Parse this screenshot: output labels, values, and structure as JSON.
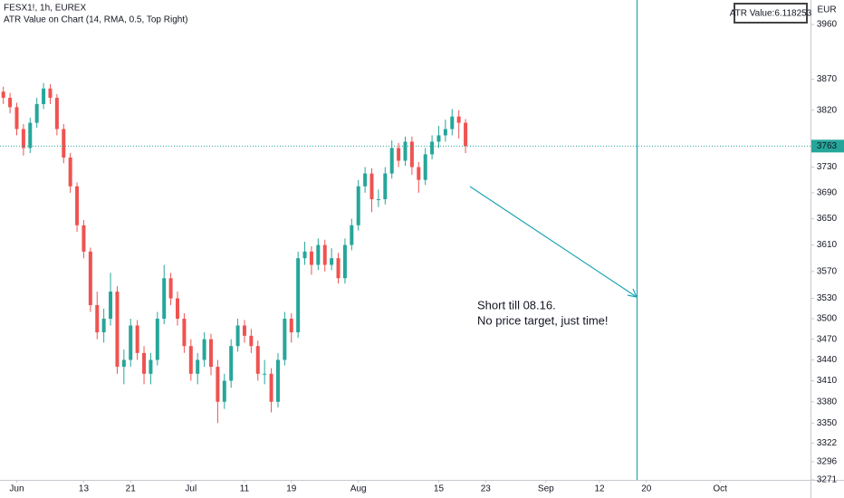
{
  "chart_data": {
    "type": "candlestick",
    "title": "FESX1!, 1h, EUREX",
    "subtitle": "ATR Value on Chart (14, RMA, 0.5, Top Right)",
    "info_box": "ATR Value:6.118253",
    "y_unit": "EUR",
    "annotation": [
      "Short till 08.16.",
      "No price target, just time!"
    ],
    "annotation_color": "#f23645",
    "last_price": 3763,
    "last_price_color": "#26a69a",
    "up_color": "#26a69a",
    "down_color": "#ef5350",
    "log_scale": true,
    "ylim": [
      3271,
      4001
    ],
    "yticks": [
      3960,
      3870,
      3820,
      3730,
      3690,
      3650,
      3610,
      3570,
      3530,
      3500,
      3470,
      3440,
      3410,
      3380,
      3350,
      3322,
      3296,
      3271
    ],
    "categories": [
      null,
      null,
      "Jun",
      null,
      null,
      null,
      null,
      null,
      null,
      null,
      null,
      null,
      "13",
      null,
      null,
      null,
      null,
      null,
      null,
      "21",
      null,
      null,
      null,
      null,
      null,
      null,
      null,
      null,
      "Jul",
      null,
      null,
      null,
      null,
      null,
      null,
      null,
      "11",
      null,
      null,
      null,
      null,
      null,
      null,
      "19",
      null,
      null,
      null,
      null,
      null,
      null,
      null,
      null,
      null,
      "Aug",
      null,
      null,
      null,
      null,
      null,
      null,
      null,
      null,
      null,
      null,
      null,
      "15",
      null,
      null,
      null,
      null,
      null,
      null,
      "23",
      null,
      null,
      null,
      null,
      null,
      null,
      null,
      null,
      "Sep",
      null,
      null,
      null,
      null,
      null,
      null,
      null,
      "12",
      null,
      null,
      null,
      null,
      null,
      null,
      "20",
      null,
      null,
      null,
      null,
      null,
      null,
      null,
      null,
      null,
      null,
      "Oct",
      null,
      null,
      null,
      null,
      null,
      null,
      null,
      null,
      null,
      null,
      null,
      null,
      null
    ],
    "open": [
      3850,
      3840,
      3825,
      3790,
      3760,
      3800,
      3830,
      3855,
      3840,
      3790,
      3745,
      3700,
      3640,
      3600,
      3520,
      3480,
      3500,
      3540,
      3430,
      3440,
      3490,
      3450,
      3420,
      3440,
      3500,
      3560,
      3530,
      3500,
      3460,
      3420,
      3440,
      3470,
      3430,
      3380,
      3410,
      3460,
      3490,
      3475,
      3460,
      3420,
      3420,
      3380,
      3440,
      3500,
      3480,
      3590,
      3600,
      3580,
      3610,
      3580,
      3590,
      3560,
      3610,
      3640,
      3700,
      3720,
      3680,
      3680,
      3720,
      3760,
      3740,
      3770,
      3730,
      3710,
      3750,
      3770,
      3780,
      3790,
      3810,
      3800,
      null,
      null,
      null,
      null,
      null,
      null,
      null,
      null,
      null,
      null,
      null,
      null,
      null,
      null,
      null,
      null,
      null,
      null,
      null,
      null,
      null,
      null,
      null,
      null,
      null,
      null,
      null,
      null,
      null,
      null,
      null,
      null,
      null,
      null,
      null,
      null,
      null,
      null,
      null,
      null,
      null,
      null,
      null,
      null,
      null,
      null,
      null,
      null,
      null,
      null,
      null
    ],
    "high": [
      3858,
      3848,
      3832,
      3798,
      3808,
      3840,
      3864,
      3862,
      3846,
      3798,
      3752,
      3706,
      3648,
      3606,
      3540,
      3515,
      3568,
      3548,
      3455,
      3500,
      3498,
      3460,
      3450,
      3510,
      3580,
      3568,
      3540,
      3508,
      3470,
      3450,
      3480,
      3478,
      3440,
      3420,
      3470,
      3500,
      3498,
      3485,
      3468,
      3440,
      3428,
      3450,
      3510,
      3508,
      3600,
      3615,
      3608,
      3620,
      3618,
      3605,
      3598,
      3620,
      3650,
      3710,
      3730,
      3728,
      3695,
      3730,
      3772,
      3768,
      3778,
      3778,
      3738,
      3760,
      3780,
      3795,
      3805,
      3822,
      3820,
      3806,
      null,
      null,
      null,
      null,
      null,
      null,
      null,
      null,
      null,
      null,
      null,
      null,
      null,
      null,
      null,
      null,
      null,
      null,
      null,
      null,
      null,
      null,
      null,
      null,
      null,
      null,
      null,
      null,
      null,
      null,
      null,
      null,
      null,
      null,
      null,
      null,
      null,
      null,
      null,
      null,
      null,
      null,
      null,
      null,
      null,
      null,
      null,
      null,
      null,
      null,
      null
    ],
    "low": [
      3830,
      3815,
      3780,
      3748,
      3752,
      3792,
      3822,
      3830,
      3780,
      3736,
      3690,
      3630,
      3590,
      3510,
      3470,
      3465,
      3490,
      3420,
      3405,
      3430,
      3440,
      3405,
      3405,
      3432,
      3492,
      3520,
      3490,
      3450,
      3410,
      3405,
      3430,
      3418,
      3350,
      3370,
      3400,
      3452,
      3465,
      3450,
      3410,
      3405,
      3365,
      3372,
      3432,
      3465,
      3472,
      3580,
      3565,
      3572,
      3570,
      3572,
      3552,
      3552,
      3602,
      3632,
      3690,
      3660,
      3668,
      3672,
      3712,
      3730,
      3732,
      3718,
      3690,
      3702,
      3742,
      3760,
      3770,
      3780,
      3775,
      3752,
      null,
      null,
      null,
      null,
      null,
      null,
      null,
      null,
      null,
      null,
      null,
      null,
      null,
      null,
      null,
      null,
      null,
      null,
      null,
      null,
      null,
      null,
      null,
      null,
      null,
      null,
      null,
      null,
      null,
      null,
      null,
      null,
      null,
      null,
      null,
      null,
      null,
      null,
      null,
      null,
      null,
      null,
      null,
      null,
      null,
      null,
      null,
      null,
      null,
      null,
      null
    ],
    "close": [
      3840,
      3825,
      3790,
      3760,
      3800,
      3830,
      3855,
      3840,
      3790,
      3745,
      3700,
      3640,
      3600,
      3520,
      3480,
      3500,
      3540,
      3430,
      3440,
      3490,
      3450,
      3420,
      3440,
      3500,
      3560,
      3530,
      3500,
      3460,
      3420,
      3440,
      3470,
      3430,
      3380,
      3410,
      3460,
      3490,
      3475,
      3460,
      3420,
      3420,
      3380,
      3440,
      3500,
      3480,
      3590,
      3600,
      3580,
      3610,
      3580,
      3590,
      3560,
      3610,
      3640,
      3700,
      3720,
      3680,
      3680,
      3720,
      3760,
      3740,
      3770,
      3730,
      3710,
      3750,
      3770,
      3780,
      3790,
      3810,
      3800,
      3763,
      null,
      null,
      null,
      null,
      null,
      null,
      null,
      null,
      null,
      null,
      null,
      null,
      null,
      null,
      null,
      null,
      null,
      null,
      null,
      null,
      null,
      null,
      null,
      null,
      null,
      null,
      null,
      null,
      null,
      null,
      null,
      null,
      null,
      null,
      null,
      null,
      null,
      null,
      null,
      null,
      null,
      null,
      null,
      null,
      null,
      null,
      null,
      null,
      null,
      null,
      null
    ]
  }
}
